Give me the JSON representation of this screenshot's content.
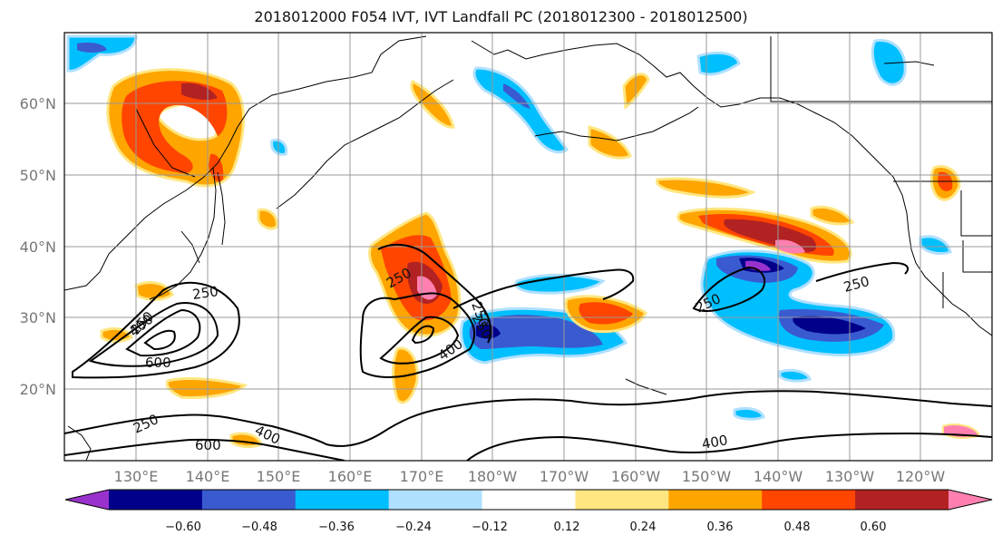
{
  "title": "2018012000 F054 IVT, IVT Landfall PC (2018012300 - 2018012500)",
  "map": {
    "lat_labels": [
      "60°N",
      "50°N",
      "40°N",
      "30°N",
      "20°N"
    ],
    "lon_labels": [
      "130°E",
      "140°E",
      "150°E",
      "160°E",
      "170°E",
      "180°W",
      "170°W",
      "160°W",
      "150°W",
      "140°W",
      "130°W",
      "120°W"
    ],
    "contour_labels": [
      "250",
      "250",
      "400",
      "600",
      "250",
      "250",
      "400",
      "250",
      "250",
      "250",
      "250",
      "400",
      "600",
      "400"
    ],
    "line_color": "#000000",
    "grid_color": "#999999"
  },
  "colorbar": {
    "colors": [
      "#9932cc",
      "#00008b",
      "#3a5bd0",
      "#00bfff",
      "#b0e0ff",
      "#ffffff",
      "#ffe680",
      "#ffa500",
      "#ff4500",
      "#b22222",
      "#ff80b0"
    ],
    "tick_labels": [
      "−0.60",
      "−0.48",
      "−0.36",
      "−0.24",
      "−0.12",
      "0.12",
      "0.24",
      "0.36",
      "0.48",
      "0.60"
    ]
  }
}
